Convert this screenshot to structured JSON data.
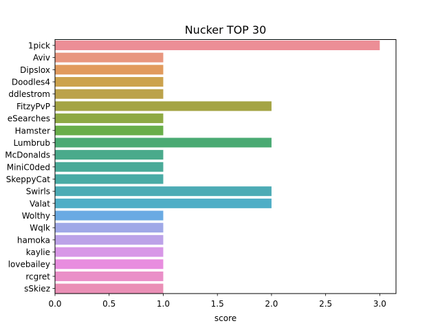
{
  "chart_data": {
    "type": "bar",
    "orientation": "horizontal",
    "title": "Nucker TOP 30",
    "xlabel": "score",
    "ylabel": "",
    "xlim": [
      0,
      3.15
    ],
    "xticks": [
      "0.0",
      "0.5",
      "1.0",
      "1.5",
      "2.0",
      "2.5",
      "3.0"
    ],
    "grid": false,
    "categories": [
      "1pick",
      "Aviv",
      "Dipslox",
      "Doodles4",
      "ddlestrom",
      "FitzyPvP",
      "eSearches",
      "Hamster",
      "Lumbrub",
      "McDonalds",
      "MiniC0ded",
      "SkeppyCat",
      "Swirls",
      "Valat",
      "Wolthy",
      "Wqlk",
      "hamoka",
      "kaylie",
      "lovebailey",
      "rcgret",
      "sSkiez"
    ],
    "values": [
      3,
      1,
      1,
      1,
      1,
      2,
      1,
      1,
      2,
      1,
      1,
      1,
      2,
      2,
      1,
      1,
      1,
      1,
      1,
      1,
      1
    ],
    "colors": [
      "#ec8e96",
      "#e8967f",
      "#e19a5d",
      "#cca24d",
      "#bba24a",
      "#a4a444",
      "#8ea943",
      "#69ae49",
      "#4aaa73",
      "#4aaa8b",
      "#4aaa98",
      "#49aba5",
      "#4cabb5",
      "#4faec6",
      "#6aaae3",
      "#9fa8e7",
      "#bca2e8",
      "#d897e7",
      "#e88ddf",
      "#ea8fc8",
      "#ea8fb6"
    ]
  }
}
